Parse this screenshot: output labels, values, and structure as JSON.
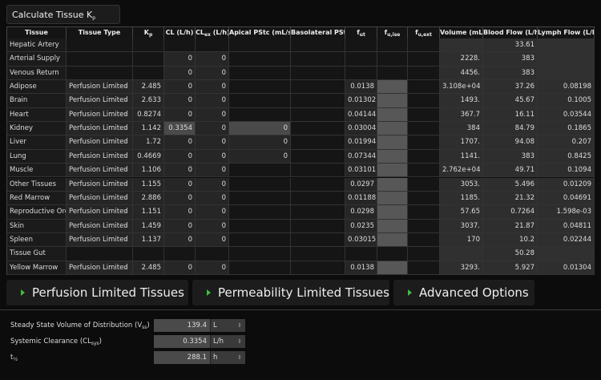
{
  "calculate_button": {
    "text": "Calculate Tissue K",
    "sub": "p"
  },
  "table": {
    "header": [
      "Tissue",
      "Tissue Type",
      {
        "text": "K",
        "sub": "p"
      },
      "CL (L/h)",
      {
        "text": "CL",
        "sub": "ex",
        "after": " (L/h)"
      },
      "Apical PStc (mL/s)",
      "Basolateral PStc",
      {
        "text": "f",
        "sub": "ut"
      },
      {
        "text": "f",
        "sub": "u,ise"
      },
      {
        "text": "f",
        "sub": "u,ext"
      },
      "Volume (mL)",
      "Blood Flow (L/h)",
      "Lymph Flow (L/h)"
    ],
    "rows": [
      {
        "cells": [
          "Hepatic Artery",
          null,
          null,
          null,
          null,
          null,
          null,
          null,
          null,
          null,
          null,
          "33.61",
          null
        ]
      },
      {
        "cells": [
          "Arterial Supply",
          null,
          null,
          "0",
          "0",
          null,
          null,
          null,
          null,
          null,
          "2228.",
          "383",
          null
        ]
      },
      {
        "cells": [
          "Venous Return",
          null,
          null,
          "0",
          "0",
          null,
          null,
          null,
          null,
          null,
          "4456.",
          "383",
          null
        ]
      },
      {
        "cells": [
          "Adipose",
          "Perfusion Limited",
          "2.485",
          "0",
          "0",
          null,
          null,
          "0.0138",
          null,
          null,
          "3.108e+04",
          "37.26",
          "0.08198"
        ]
      },
      {
        "cells": [
          "Brain",
          "Perfusion Limited",
          "2.633",
          "0",
          "0",
          null,
          null,
          "0.01302",
          null,
          null,
          "1493.",
          "45.67",
          "0.1005"
        ]
      },
      {
        "cells": [
          "Heart",
          "Perfusion Limited",
          "0.8274",
          "0",
          "0",
          null,
          null,
          "0.04144",
          null,
          null,
          "367.7",
          "16.11",
          "0.03544"
        ]
      },
      {
        "cells": [
          "Kidney",
          "Perfusion Limited",
          "1.142",
          "0.3354",
          "0",
          "0",
          null,
          "0.03004",
          null,
          null,
          "384",
          "84.79",
          "0.1865"
        ]
      },
      {
        "cells": [
          "Liver",
          "Perfusion Limited",
          "1.72",
          "0",
          "0",
          "0",
          null,
          "0.01994",
          null,
          null,
          "1707.",
          "94.08",
          "0.207"
        ]
      },
      {
        "cells": [
          "Lung",
          "Perfusion Limited",
          "0.4669",
          "0",
          "0",
          "0",
          null,
          "0.07344",
          null,
          null,
          "1141.",
          "383",
          "0.8425"
        ]
      },
      {
        "cells": [
          "Muscle",
          "Perfusion Limited",
          "1.106",
          "0",
          "0",
          null,
          null,
          "0.03101",
          null,
          null,
          "2.762e+04",
          "49.71",
          "0.1094"
        ]
      },
      {
        "cells": [
          "Other Tissues",
          "Perfusion Limited",
          "1.155",
          "0",
          "0",
          null,
          null,
          "0.0297",
          null,
          null,
          "3053.",
          "5.496",
          "0.01209"
        ]
      },
      {
        "cells": [
          "Red Marrow",
          "Perfusion Limited",
          "2.886",
          "0",
          "0",
          null,
          null,
          "0.01188",
          null,
          null,
          "1185.",
          "21.32",
          "0.04691"
        ]
      },
      {
        "cells": [
          "Reproductive Organ",
          "Perfusion Limited",
          "1.151",
          "0",
          "0",
          null,
          null,
          "0.0298",
          null,
          null,
          "57.65",
          "0.7264",
          "1.598e-03"
        ]
      },
      {
        "cells": [
          "Skin",
          "Perfusion Limited",
          "1.459",
          "0",
          "0",
          null,
          null,
          "0.0235",
          null,
          null,
          "3037.",
          "21.87",
          "0.04811"
        ]
      },
      {
        "cells": [
          "Spleen",
          "Perfusion Limited",
          "1.137",
          "0",
          "0",
          null,
          null,
          "0.03015",
          null,
          null,
          "170",
          "10.2",
          "0.02244"
        ]
      },
      {
        "cells": [
          "Tissue Gut",
          null,
          null,
          null,
          null,
          null,
          null,
          null,
          null,
          null,
          null,
          "50.28",
          null
        ]
      },
      {
        "cells": [
          "Yellow Marrow",
          "Perfusion Limited",
          "2.485",
          "0",
          "0",
          null,
          null,
          "0.0138",
          null,
          null,
          "3293.",
          "5.927",
          "0.01304"
        ]
      }
    ]
  },
  "sections": [
    "Perfusion Limited Tissues",
    "Permeability Limited Tissues",
    "Advanced Options"
  ],
  "results": [
    {
      "label": {
        "text": "Steady State Volume of Distribution (V",
        "sub": "ss",
        "after": ")"
      },
      "value": "139.4",
      "unit": "L"
    },
    {
      "label": {
        "text": "Systemic Clearance (CL",
        "sub": "sys",
        "after": ")"
      },
      "value": "0.3354",
      "unit": "L/h"
    },
    {
      "label": {
        "text": "t",
        "sub": "½"
      },
      "value": "288.1",
      "unit": "h"
    }
  ]
}
